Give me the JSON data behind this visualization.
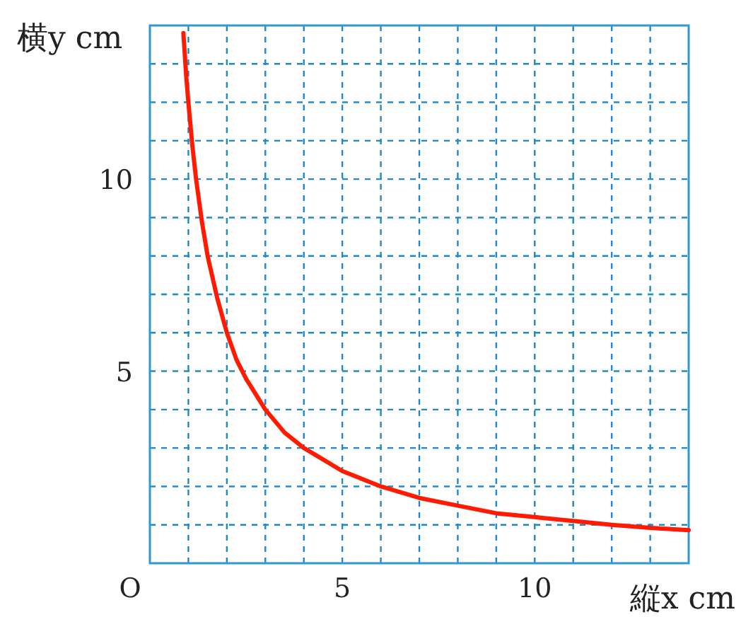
{
  "chart_data": {
    "type": "line",
    "xlabel": "縦x cm",
    "ylabel": "横y cm",
    "xlim": [
      0,
      14
    ],
    "ylim": [
      0,
      14
    ],
    "xticks": [
      {
        "value": 0,
        "label": "O"
      },
      {
        "value": 1,
        "label": null
      },
      {
        "value": 2,
        "label": null
      },
      {
        "value": 3,
        "label": null
      },
      {
        "value": 4,
        "label": null
      },
      5,
      {
        "value": 6,
        "label": null
      },
      {
        "value": 7,
        "label": null
      },
      {
        "value": 8,
        "label": null
      },
      {
        "value": 9,
        "label": null
      },
      10,
      {
        "value": 11,
        "label": null
      },
      {
        "value": 12,
        "label": null
      },
      {
        "value": 13,
        "label": null
      },
      {
        "value": 14,
        "label": null
      }
    ],
    "yticks": [
      {
        "value": 1,
        "label": null
      },
      {
        "value": 2,
        "label": null
      },
      {
        "value": 3,
        "label": null
      },
      {
        "value": 4,
        "label": null
      },
      5,
      {
        "value": 6,
        "label": null
      },
      {
        "value": 7,
        "label": null
      },
      {
        "value": 8,
        "label": null
      },
      {
        "value": 9,
        "label": null
      },
      10,
      {
        "value": 11,
        "label": null
      },
      {
        "value": 12,
        "label": null
      },
      {
        "value": 13,
        "label": null
      },
      {
        "value": 14,
        "label": null
      }
    ],
    "grid": true,
    "marker": "none",
    "line_style": "solid",
    "series": [
      {
        "color": "#ff1a00",
        "x": [
          0.87,
          0.95,
          1,
          1.1,
          1.2,
          1.35,
          1.5,
          1.75,
          2,
          2.25,
          2.5,
          3,
          3.5,
          4,
          4.5,
          5,
          6,
          7,
          8,
          9,
          10,
          11,
          12,
          13,
          14
        ],
        "values": [
          13.8,
          12.6,
          12,
          10.9,
          10,
          8.9,
          8,
          6.9,
          6,
          5.3,
          4.8,
          4,
          3.4,
          3,
          2.7,
          2.4,
          2,
          1.7,
          1.5,
          1.3,
          1.2,
          1.1,
          1,
          0.92,
          0.86
        ]
      }
    ]
  }
}
